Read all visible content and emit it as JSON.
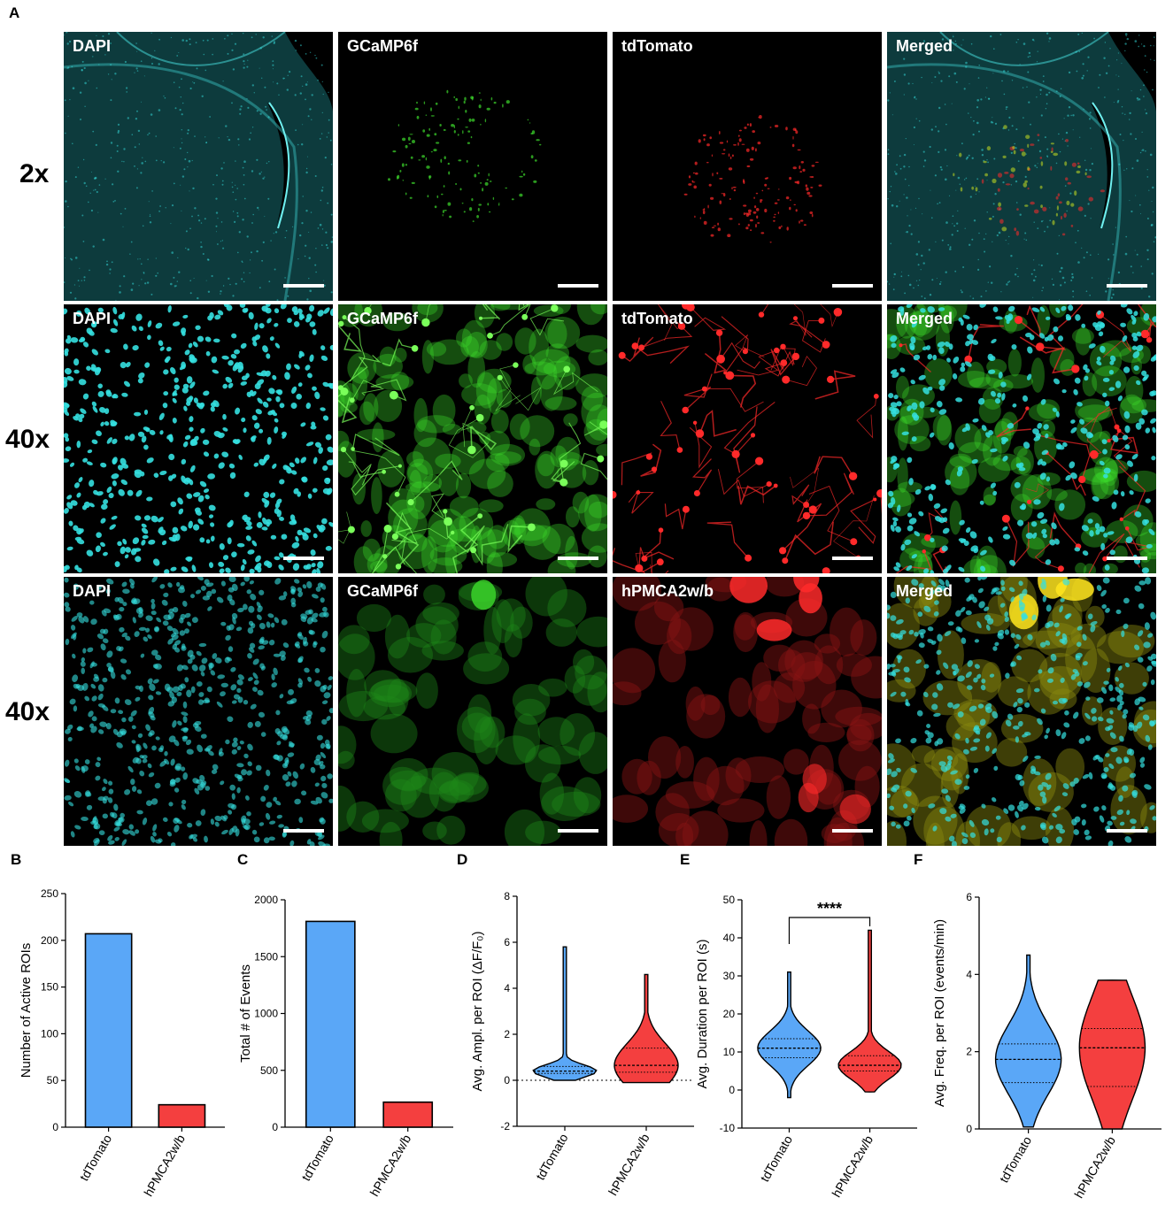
{
  "figure": {
    "panel_A": {
      "letter": "A",
      "rows": [
        {
          "magnification": "2x",
          "tiles": [
            {
              "label": "DAPI",
              "type": "dapi-brain"
            },
            {
              "label": "GCaMP6f",
              "type": "green-blob"
            },
            {
              "label": "tdTomato",
              "type": "red-blob"
            },
            {
              "label": "Merged",
              "type": "merged-brain"
            }
          ]
        },
        {
          "magnification": "40x",
          "tiles": [
            {
              "label": "DAPI",
              "type": "dapi-cells"
            },
            {
              "label": "GCaMP6f",
              "type": "green-dense"
            },
            {
              "label": "tdTomato",
              "type": "red-processes"
            },
            {
              "label": "Merged",
              "type": "merged-dense"
            }
          ]
        },
        {
          "magnification": "40x",
          "tiles": [
            {
              "label": "DAPI",
              "type": "dapi-cells-dim"
            },
            {
              "label": "GCaMP6f",
              "type": "green-patchy"
            },
            {
              "label": "hPMCA2w/b",
              "type": "red-patchy"
            },
            {
              "label": "Merged",
              "type": "merged-patchy"
            }
          ]
        }
      ]
    },
    "colors": {
      "tdTomato": "#5aa7f7",
      "hPMCA2w/b": "#f43f3f",
      "dapi": "#35e0e0",
      "green": "#3ddc2c",
      "red": "#ff2a2a"
    }
  },
  "chart_data": [
    {
      "letter": "B",
      "type": "bar",
      "categories": [
        "tdTomato",
        "hPMCA2w/b"
      ],
      "values": [
        207,
        24
      ],
      "ylabel": "Number of Active ROIs",
      "ylim": [
        0,
        250
      ],
      "yticks": [
        0,
        50,
        100,
        150,
        200,
        250
      ]
    },
    {
      "letter": "C",
      "type": "bar",
      "categories": [
        "tdTomato",
        "hPMCA2w/b"
      ],
      "values": [
        1810,
        220
      ],
      "ylabel": "Total # of Events",
      "ylim": [
        0,
        2000
      ],
      "yticks": [
        0,
        500,
        1000,
        1500,
        2000
      ]
    },
    {
      "letter": "D",
      "type": "violin",
      "categories": [
        "tdTomato",
        "hPMCA2w/b"
      ],
      "ylabel": "Avg. Ampl. per ROI (ΔF/F₀)",
      "ylim": [
        -2,
        8
      ],
      "yticks": [
        -2,
        0,
        2,
        4,
        6,
        8
      ],
      "zero_line": true,
      "series": [
        {
          "name": "tdTomato",
          "min": 0.0,
          "max": 5.8,
          "q1": 0.3,
          "median": 0.4,
          "q3": 0.6
        },
        {
          "name": "hPMCA2w/b",
          "min": -0.1,
          "max": 4.6,
          "q1": 0.35,
          "median": 0.65,
          "q3": 1.4
        }
      ]
    },
    {
      "letter": "E",
      "type": "violin",
      "categories": [
        "tdTomato",
        "hPMCA2w/b"
      ],
      "ylabel": "Avg. Duration per ROI (s)",
      "ylim": [
        -10,
        50
      ],
      "yticks": [
        -10,
        0,
        10,
        20,
        30,
        40,
        50
      ],
      "significance": "****",
      "series": [
        {
          "name": "tdTomato",
          "min": -2,
          "max": 31,
          "q1": 8.5,
          "median": 11,
          "q3": 13.5
        },
        {
          "name": "hPMCA2w/b",
          "min": -0.5,
          "max": 42,
          "q1": 5,
          "median": 6.5,
          "q3": 9
        }
      ]
    },
    {
      "letter": "F",
      "type": "violin",
      "categories": [
        "tdTomato",
        "hPMCA2w/b"
      ],
      "ylabel": "Avg. Freq. per ROI  (events/min)",
      "ylim": [
        0,
        6
      ],
      "yticks": [
        0,
        2,
        4,
        6
      ],
      "series": [
        {
          "name": "tdTomato",
          "min": 0.05,
          "max": 4.5,
          "q1": 1.2,
          "median": 1.8,
          "q3": 2.2
        },
        {
          "name": "hPMCA2w/b",
          "min": 0.0,
          "max": 3.85,
          "q1": 1.1,
          "median": 2.1,
          "q3": 2.6
        }
      ]
    }
  ]
}
